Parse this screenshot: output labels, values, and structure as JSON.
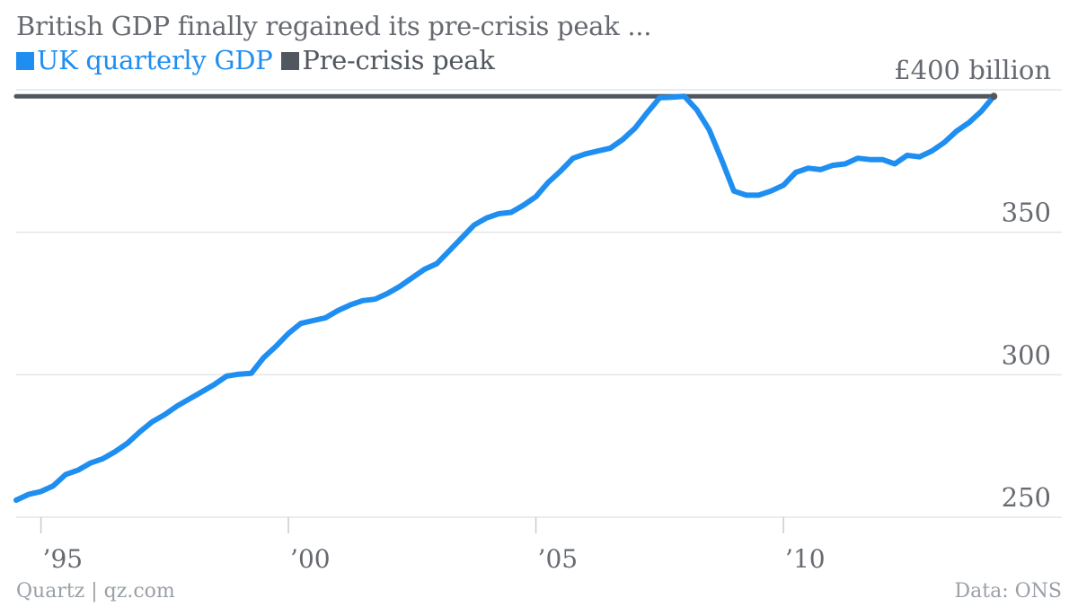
{
  "header": {
    "title": "British GDP finally regained its pre-crisis peak ..."
  },
  "legend": {
    "items": [
      {
        "label": "UK quarterly GDP",
        "color": "#1f8ef1",
        "swatch": "■"
      },
      {
        "label": "Pre-crisis peak",
        "color": "#51575f",
        "swatch": "■"
      }
    ]
  },
  "footer": {
    "source_left": "Quartz | qz.com",
    "source_right": "Data: ONS"
  },
  "chart_data": {
    "type": "line",
    "title": "British GDP finally regained its pre-crisis peak ...",
    "xlabel": "",
    "ylabel": "",
    "xlim": [
      1994.5,
      2014.5
    ],
    "ylim": [
      250,
      400
    ],
    "x_ticks": [
      1995,
      2000,
      2005,
      2010
    ],
    "x_tick_labels": [
      "’95",
      "’00",
      "’05",
      "’10"
    ],
    "y_ticks": [
      250,
      300,
      350,
      400
    ],
    "y_tick_labels": [
      "250",
      "300",
      "350",
      "£400 billion"
    ],
    "grid": "horizontal",
    "legend_position": "top-left",
    "series": [
      {
        "name": "UK quarterly GDP",
        "color": "#1f8ef1",
        "x": [
          1994.5,
          1994.75,
          1995.0,
          1995.25,
          1995.5,
          1995.75,
          1996.0,
          1996.25,
          1996.5,
          1996.75,
          1997.0,
          1997.25,
          1997.5,
          1997.75,
          1998.0,
          1998.25,
          1998.5,
          1998.75,
          1999.0,
          1999.25,
          1999.5,
          1999.75,
          2000.0,
          2000.25,
          2000.5,
          2000.75,
          2001.0,
          2001.25,
          2001.5,
          2001.75,
          2002.0,
          2002.25,
          2002.5,
          2002.75,
          2003.0,
          2003.25,
          2003.5,
          2003.75,
          2004.0,
          2004.25,
          2004.5,
          2004.75,
          2005.0,
          2005.25,
          2005.5,
          2005.75,
          2006.0,
          2006.25,
          2006.5,
          2006.75,
          2007.0,
          2007.25,
          2007.5,
          2007.75,
          2008.0,
          2008.25,
          2008.5,
          2008.75,
          2009.0,
          2009.25,
          2009.5,
          2009.75,
          2010.0,
          2010.25,
          2010.5,
          2010.75,
          2011.0,
          2011.25,
          2011.5,
          2011.75,
          2012.0,
          2012.25,
          2012.5,
          2012.75,
          2013.0,
          2013.25,
          2013.5,
          2013.75,
          2014.0,
          2014.25
        ],
        "values": [
          256,
          258,
          259,
          261,
          265,
          266.5,
          269,
          270.5,
          273,
          276,
          280,
          283.5,
          286,
          289,
          291.5,
          294,
          296.5,
          299.5,
          300.2,
          300.5,
          306,
          310,
          314.5,
          318,
          319,
          320,
          322.5,
          324.5,
          326,
          326.5,
          328.5,
          331,
          334,
          337,
          339,
          343.5,
          348,
          352.5,
          355,
          356.5,
          357,
          359.5,
          362.5,
          367.5,
          371.5,
          376,
          377.5,
          378.5,
          379.5,
          382.5,
          386.5,
          392,
          397.2,
          397.4,
          397.7,
          393,
          386,
          375.5,
          364.5,
          363,
          363,
          364.5,
          366.5,
          371,
          372.5,
          372,
          373.5,
          374,
          376,
          375.5,
          375.5,
          374,
          377,
          376.5,
          378.5,
          381.5,
          385.5,
          388.5,
          392.5,
          397.7
        ]
      },
      {
        "name": "Pre-crisis peak",
        "color": "#51575f",
        "x": [
          1994.5,
          2014.25
        ],
        "values": [
          397.7,
          397.7
        ]
      }
    ]
  }
}
